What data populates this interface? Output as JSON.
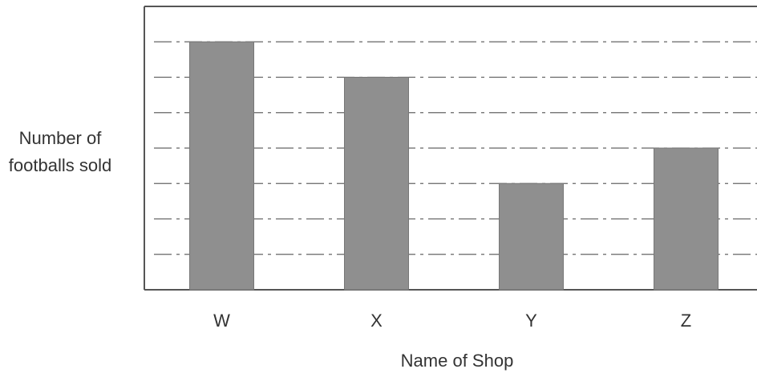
{
  "chart_data": {
    "type": "bar",
    "y_axis_label": "Number of footballs sold",
    "x_axis_label": "Name of Shop",
    "categories": [
      "W",
      "X",
      "Y",
      "Z"
    ],
    "values": [
      7,
      6,
      3,
      4
    ],
    "color": "#8f8f8f",
    "ylim": [
      0,
      8
    ],
    "yticks": [
      1,
      2,
      3,
      4,
      5,
      6,
      7
    ],
    "grid": true
  }
}
